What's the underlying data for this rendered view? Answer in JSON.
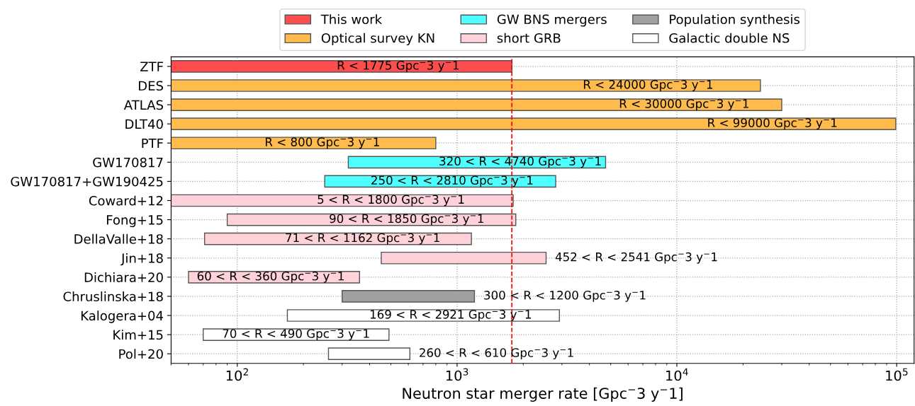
{
  "chart_data": {
    "type": "bar",
    "orientation": "horizontal",
    "xlabel": "Neutron star merger rate [Gpc$^{−}$3 y$^{−}$1]",
    "categories": [
      "ZTF",
      "DES",
      "ATLAS",
      "DLT40",
      "PTF",
      "GW170817",
      "GW170817+GW190425",
      "Coward+12",
      "Fong+15",
      "DellaValle+18",
      "Jin+18",
      "Dichiara+20",
      "Chruslinska+18",
      "Kalogera+04",
      "Kim+15",
      "Pol+20"
    ],
    "series": [
      {
        "name": "This work",
        "color": "#ff4d4d",
        "base": [
          50,
          null,
          null,
          null,
          null,
          null,
          null,
          null,
          null,
          null,
          null,
          null,
          null,
          null,
          null,
          null
        ],
        "values": [
          1725,
          null,
          null,
          null,
          null,
          null,
          null,
          null,
          null,
          null,
          null,
          null,
          null,
          null,
          null,
          null
        ]
      },
      {
        "name": "Optical survey KN",
        "color": "#ffbc4d",
        "base": [
          null,
          50,
          50,
          50,
          50,
          null,
          null,
          null,
          null,
          null,
          null,
          null,
          null,
          null,
          null,
          null
        ],
        "values": [
          null,
          23950,
          29950,
          98950,
          750,
          null,
          null,
          null,
          null,
          null,
          null,
          null,
          null,
          null,
          null,
          null
        ]
      },
      {
        "name": "GW BNS mergers",
        "color": "#4dffff",
        "base": [
          null,
          null,
          null,
          null,
          null,
          320,
          250,
          null,
          null,
          null,
          null,
          null,
          null,
          null,
          null,
          null
        ],
        "values": [
          null,
          null,
          null,
          null,
          null,
          4420,
          2560,
          null,
          null,
          null,
          null,
          null,
          null,
          null,
          null,
          null
        ]
      },
      {
        "name": "short GRB",
        "color": "#ffd1d9",
        "base": [
          null,
          null,
          null,
          null,
          null,
          null,
          null,
          50,
          90,
          71,
          452,
          60,
          null,
          null,
          null,
          null
        ],
        "values": [
          null,
          null,
          null,
          null,
          null,
          null,
          null,
          1750,
          1760,
          1091,
          2089,
          300,
          null,
          null,
          null,
          null
        ]
      },
      {
        "name": "Population synthesis",
        "color": "#a0a0a0",
        "base": [
          null,
          null,
          null,
          null,
          null,
          null,
          null,
          null,
          null,
          null,
          null,
          null,
          300,
          null,
          null,
          null
        ],
        "values": [
          null,
          null,
          null,
          null,
          null,
          null,
          null,
          null,
          null,
          null,
          null,
          null,
          900,
          null,
          null,
          null
        ]
      },
      {
        "name": "Galactic double NS",
        "color": "#ffffff",
        "base": [
          null,
          null,
          null,
          null,
          null,
          null,
          null,
          null,
          null,
          null,
          null,
          null,
          null,
          169,
          70,
          260
        ],
        "values": [
          null,
          null,
          null,
          null,
          null,
          null,
          null,
          null,
          null,
          null,
          null,
          null,
          null,
          2752,
          420,
          350
        ]
      }
    ],
    "annotations": [
      {
        "text": "R < 1775 Gpc$^{−}$3 y$^{−}$1",
        "x": 540,
        "y": "ZTF"
      },
      {
        "text": "R < 24000 Gpc$^{−}$3 y$^{−}$1",
        "x": 7400,
        "y": "DES"
      },
      {
        "text": "R < 30000 Gpc$^{−}$3 y$^{−}$1",
        "x": 10800,
        "y": "ATLAS"
      },
      {
        "text": "R < 99000 Gpc$^{−}$3 y$^{−}$1",
        "x": 27200,
        "y": "DLT40"
      },
      {
        "text": "R < 800 Gpc$^{−}$3 y$^{−}$1",
        "x": 244,
        "y": "PTF"
      },
      {
        "text": "320 < R < 4740 Gpc$^{−}$3 y$^{−}$1",
        "x": 1940,
        "y": "GW170817"
      },
      {
        "text": "250 < R < 2810 Gpc$^{−}$3 y$^{−}$1",
        "x": 950,
        "y": "GW170817+GW190425"
      },
      {
        "text": "5 < R < 1800 Gpc$^{−}$3 y$^{−}$1",
        "x": 500,
        "y": "Coward+12"
      },
      {
        "text": "90 < R < 1850 Gpc$^{−}$3 y$^{−}$1",
        "x": 590,
        "y": "Fong+15"
      },
      {
        "text": "71 < R < 1162 Gpc$^{−}$3 y$^{−}$1",
        "x": 372,
        "y": "DellaValle+18"
      },
      {
        "text": "452 < R < 2541 Gpc$^{−}$3 y$^{−}$1",
        "x": 2541,
        "y": "Jin+18"
      },
      {
        "text": "60 < R < 360 Gpc$^{−}$3 y$^{−}$1",
        "x": 142,
        "y": "Dichiara+20"
      },
      {
        "text": "300 < R < 1200 Gpc$^{−}$3 y$^{−}$1",
        "x": 1200,
        "y": "Chruslinska+18"
      },
      {
        "text": "169 < R < 2921 Gpc$^{−}$3 y$^{−}$1",
        "x": 935,
        "y": "Kalogera+04"
      },
      {
        "text": "70 < R < 490 Gpc$^{−}$3 y$^{−}$1",
        "x": 185,
        "y": "Kim+15"
      },
      {
        "text": "260 < R < 610 Gpc$^{−}$3 y$^{−}$1",
        "x": 610,
        "y": "Pol+20"
      }
    ],
    "log": "x",
    "xlim": [
      50,
      120000
    ],
    "xticks": [
      {
        "value": 100,
        "label": "10$^{2}$"
      },
      {
        "value": 1000,
        "label": "10$^{3}$"
      },
      {
        "value": 10000,
        "label": "10$^{4}$"
      },
      {
        "value": 100000,
        "label": "10$^{5}$"
      }
    ],
    "ref_lines": [
      {
        "axis": "x",
        "value": 1775,
        "color": "#ff0000",
        "line_style": "dashed"
      }
    ],
    "grid": true,
    "legend": "top"
  }
}
